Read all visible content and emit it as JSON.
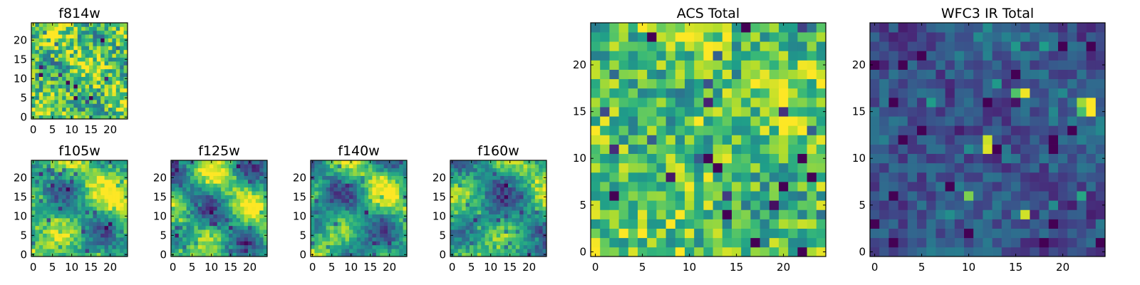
{
  "chart_data": [
    {
      "type": "heatmap",
      "title": "f814w",
      "size": 25,
      "xticks": [
        0,
        5,
        10,
        15,
        20
      ],
      "yticks": [
        0,
        5,
        10,
        15,
        20
      ],
      "colormap": "viridis",
      "texture": {
        "seed": 11,
        "base": 0.72,
        "amp": 0.12,
        "noise": 0.28,
        "scale": 0.5,
        "wf": 0.35,
        "wx": 0.9,
        "wy": 0.7
      },
      "hot_spots": []
    },
    {
      "type": "heatmap",
      "title": "f105w",
      "size": 25,
      "xticks": [
        0,
        5,
        10,
        15,
        20
      ],
      "yticks": [
        0,
        5,
        10,
        15,
        20
      ],
      "colormap": "viridis",
      "texture": {
        "seed": 23,
        "base": 0.66,
        "amp": 0.3,
        "noise": 0.14,
        "scale": 0.3,
        "wf": 0.28,
        "wx": 0.8,
        "wy": 0.6
      },
      "hot_spots": []
    },
    {
      "type": "heatmap",
      "title": "f125w",
      "size": 25,
      "xticks": [
        0,
        5,
        10,
        15,
        20
      ],
      "yticks": [
        0,
        5,
        10,
        15,
        20
      ],
      "colormap": "viridis",
      "texture": {
        "seed": 37,
        "base": 0.6,
        "amp": 0.32,
        "noise": 0.14,
        "scale": 0.28,
        "wf": 0.32,
        "wx": 0.5,
        "wy": 0.9
      },
      "hot_spots": []
    },
    {
      "type": "heatmap",
      "title": "f140w",
      "size": 25,
      "xticks": [
        0,
        5,
        10,
        15,
        20
      ],
      "yticks": [
        0,
        5,
        10,
        15,
        20
      ],
      "colormap": "viridis",
      "texture": {
        "seed": 41,
        "base": 0.58,
        "amp": 0.34,
        "noise": 0.14,
        "scale": 0.3,
        "wf": 0.3,
        "wx": 0.7,
        "wy": 0.4
      },
      "hot_spots": []
    },
    {
      "type": "heatmap",
      "title": "f160w",
      "size": 25,
      "xticks": [
        0,
        5,
        10,
        15,
        20
      ],
      "yticks": [
        0,
        5,
        10,
        15,
        20
      ],
      "colormap": "viridis",
      "texture": {
        "seed": 53,
        "base": 0.58,
        "amp": 0.34,
        "noise": 0.14,
        "scale": 0.32,
        "wf": 0.26,
        "wx": 0.3,
        "wy": 0.8
      },
      "hot_spots": []
    },
    {
      "type": "heatmap",
      "title": "ACS Total",
      "size": 25,
      "xticks": [
        0,
        5,
        10,
        15,
        20
      ],
      "yticks": [
        0,
        5,
        10,
        15,
        20
      ],
      "colormap": "viridis",
      "texture": {
        "seed": 67,
        "base": 0.72,
        "amp": 0.1,
        "noise": 0.26,
        "scale": 0.6,
        "wf": 0.3,
        "wx": 0.6,
        "wy": 0.5
      },
      "hot_spots": []
    },
    {
      "type": "heatmap",
      "title": "WFC3 IR Total",
      "size": 25,
      "xticks": [
        0,
        5,
        10,
        15,
        20
      ],
      "yticks": [
        0,
        5,
        10,
        15,
        20
      ],
      "colormap": "viridis",
      "texture": {
        "seed": 79,
        "base": 0.27,
        "amp": 0.06,
        "noise": 0.14,
        "scale": 0.6,
        "wf": 0.3,
        "wx": 0.4,
        "wy": 0.7
      },
      "hot_spots": [
        {
          "col": 15,
          "row": 17,
          "value": 0.72
        },
        {
          "col": 16,
          "row": 17,
          "value": 0.98
        },
        {
          "col": 15,
          "row": 16,
          "value": 0.05
        },
        {
          "col": 22,
          "row": 16,
          "value": 0.85
        },
        {
          "col": 23,
          "row": 16,
          "value": 1.0
        },
        {
          "col": 22,
          "row": 15,
          "value": 0.7
        },
        {
          "col": 23,
          "row": 15,
          "value": 1.0
        },
        {
          "col": 12,
          "row": 12,
          "value": 0.92
        },
        {
          "col": 12,
          "row": 11,
          "value": 0.95
        },
        {
          "col": 10,
          "row": 6,
          "value": 0.8
        },
        {
          "col": 16,
          "row": 4,
          "value": 0.93
        }
      ]
    }
  ]
}
